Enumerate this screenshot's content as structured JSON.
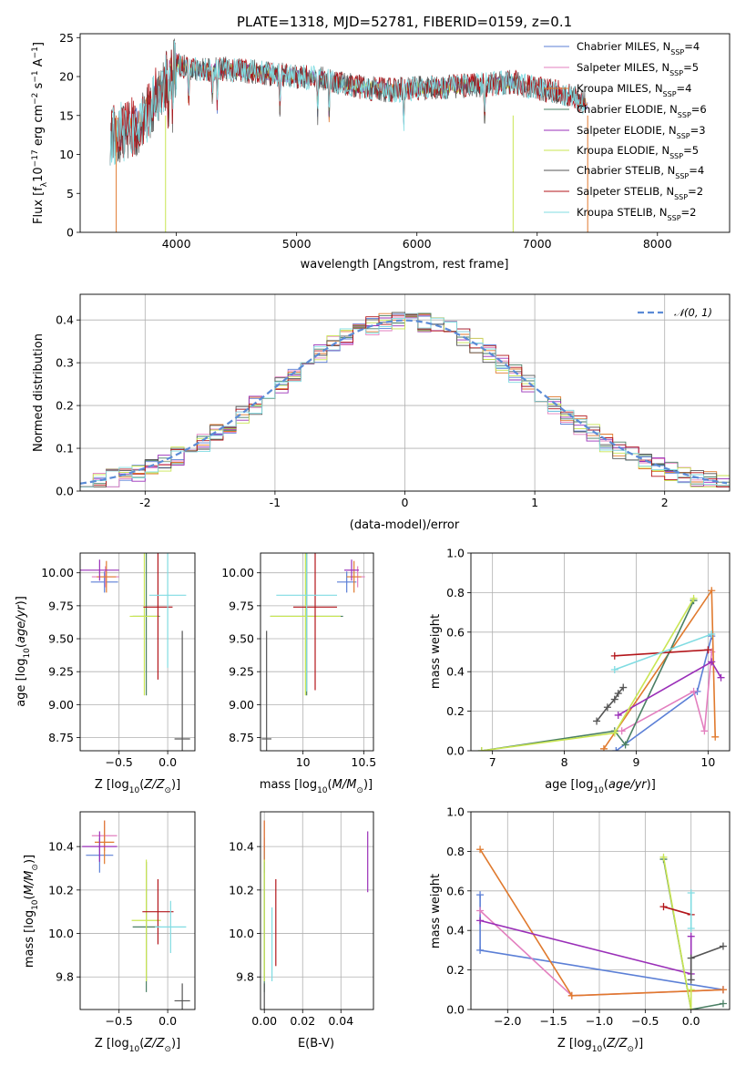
{
  "figure": {
    "title": "PLATE=1318, MJD=52781, FIBERID=0159, z=0.1"
  },
  "colors": {
    "Chabrier MILES": "#5b7fd6",
    "Salpeter MILES": "#e37fbf",
    "Kroupa MILES": "#e07a2e",
    "Chabrier ELODIE": "#4a7f64",
    "Salpeter ELODIE": "#9a2fb8",
    "Kroupa ELODIE": "#c9e552",
    "Chabrier STELIB": "#555555",
    "Salpeter STELIB": "#b3161b",
    "Kroupa STELIB": "#80dce2",
    "gaussian": "#5b8bd6",
    "grid": "#b0b0b0"
  },
  "chart_data": [
    {
      "id": "spectrum",
      "type": "line",
      "title": "PLATE=1318, MJD=52781, FIBERID=0159, z=0.1",
      "xlabel": "wavelength [Angstrom, rest frame]",
      "ylabel": "Flux [f_λ 10^-17 erg cm^-2 s^-1 A^-1]",
      "xlim": [
        3200,
        8600
      ],
      "ylim": [
        0,
        25.5
      ],
      "xticks": [
        4000,
        5000,
        6000,
        7000,
        8000
      ],
      "yticks": [
        0,
        5,
        10,
        15,
        20,
        25
      ],
      "grid": false,
      "legend_position": "right",
      "legend": [
        "Chabrier MILES, N_SSP=4",
        "Salpeter MILES, N_SSP=5",
        "Kroupa MILES, N_SSP=4",
        "Chabrier ELODIE, N_SSP=6",
        "Salpeter ELODIE, N_SSP=3",
        "Kroupa ELODIE, N_SSP=5",
        "Chabrier STELIB, N_SSP=4",
        "Salpeter STELIB, N_SSP=2",
        "Kroupa STELIB, N_SSP=2"
      ],
      "continuum": {
        "x": [
          3500,
          3700,
          3900,
          4000,
          4200,
          4400,
          4600,
          4800,
          5000,
          5200,
          5400,
          5600,
          5800,
          6000,
          6200,
          6400,
          6600,
          6800,
          7000,
          7200,
          7400,
          7500
        ],
        "y": [
          12.5,
          14.0,
          19.0,
          21.5,
          20.8,
          21.0,
          20.7,
          20.3,
          20.0,
          19.8,
          19.0,
          18.5,
          18.2,
          18.5,
          18.6,
          18.8,
          19.0,
          19.3,
          18.4,
          18.0,
          16.6,
          16.0
        ]
      },
      "series": [
        {
          "name": "Chabrier MILES",
          "x_range": [
            3500,
            7420
          ]
        },
        {
          "name": "Salpeter MILES",
          "x_range": [
            3500,
            7420
          ]
        },
        {
          "name": "Kroupa MILES",
          "x_range": [
            3500,
            7420
          ]
        },
        {
          "name": "Chabrier ELODIE",
          "x_range": [
            3900,
            6800
          ]
        },
        {
          "name": "Salpeter ELODIE",
          "x_range": [
            3900,
            6800
          ]
        },
        {
          "name": "Kroupa ELODIE",
          "x_range": [
            3900,
            6800
          ]
        },
        {
          "name": "Chabrier STELIB",
          "x_range": [
            3450,
            7400
          ]
        },
        {
          "name": "Salpeter STELIB",
          "x_range": [
            3450,
            7400
          ]
        },
        {
          "name": "Kroupa STELIB",
          "x_range": [
            3450,
            7400
          ]
        }
      ]
    },
    {
      "id": "residuals",
      "type": "line",
      "xlabel": "(data-model)/error",
      "ylabel": "Normed distribution",
      "xlim": [
        -2.5,
        2.5
      ],
      "ylim": [
        0,
        0.46
      ],
      "xticks": [
        -2,
        -1,
        0,
        1,
        2
      ],
      "yticks": [
        0.0,
        0.1,
        0.2,
        0.3,
        0.4
      ],
      "grid": true,
      "legend": [
        "𝒩(0, 1)"
      ],
      "legend_position": "top-right",
      "bin_width": 0.1
    },
    {
      "id": "age_vs_Z",
      "type": "scatter",
      "xlabel": "Z [log10(Z/Z⊙)]",
      "ylabel": "age  [log10(age/yr)]",
      "xlim": [
        -0.9,
        0.28
      ],
      "ylim": [
        8.65,
        10.15
      ],
      "xticks": [
        -0.5,
        0.0
      ],
      "xtick_labels": [
        "−0.5",
        "0.0"
      ],
      "yticks": [
        8.75,
        9.0,
        9.25,
        9.5,
        9.75,
        10.0
      ],
      "grid": true,
      "points": [
        {
          "series": "Chabrier MILES",
          "x": -0.65,
          "y": 9.93,
          "xerr": 0.14,
          "yerr": 0.08
        },
        {
          "series": "Salpeter MILES",
          "x": -0.64,
          "y": 9.97,
          "xerr": 0.14,
          "yerr": 0.08
        },
        {
          "series": "Kroupa MILES",
          "x": -0.63,
          "y": 9.97,
          "xerr": 0.1,
          "yerr": 0.12
        },
        {
          "series": "Chabrier ELODIE",
          "x": -0.22,
          "y": 9.67,
          "xerr": 0.14,
          "yerr": 0.6
        },
        {
          "series": "Salpeter ELODIE",
          "x": -0.7,
          "y": 10.02,
          "xerr": 0.2,
          "yerr": 0.08
        },
        {
          "series": "Kroupa ELODIE",
          "x": -0.24,
          "y": 9.67,
          "xerr": 0.15,
          "yerr": 0.6
        },
        {
          "series": "Chabrier STELIB",
          "x": 0.15,
          "y": 8.74,
          "xerr": 0.08,
          "yerr": 0.82
        },
        {
          "series": "Salpeter STELIB",
          "x": -0.1,
          "y": 9.74,
          "xerr": 0.15,
          "yerr": 0.55
        },
        {
          "series": "Kroupa STELIB",
          "x": 0.0,
          "y": 9.83,
          "xerr": 0.19,
          "yerr": 0.55
        }
      ]
    },
    {
      "id": "age_vs_mass",
      "type": "scatter",
      "xlabel": "mass [log10(M/M⊙)]",
      "xlim": [
        9.65,
        10.58
      ],
      "ylim": [
        8.65,
        10.15
      ],
      "xticks": [
        10.0,
        10.5
      ],
      "yticks": [
        8.75,
        9.0,
        9.25,
        9.5,
        9.75,
        10.0
      ],
      "grid": true,
      "points": [
        {
          "series": "Chabrier MILES",
          "x": 10.36,
          "y": 9.93,
          "xerr": 0.08,
          "yerr": 0.08
        },
        {
          "series": "Salpeter MILES",
          "x": 10.45,
          "y": 9.97,
          "xerr": 0.06,
          "yerr": 0.08
        },
        {
          "series": "Kroupa MILES",
          "x": 10.42,
          "y": 9.97,
          "xerr": 0.06,
          "yerr": 0.12
        },
        {
          "series": "Chabrier ELODIE",
          "x": 10.03,
          "y": 9.67,
          "xerr": 0.3,
          "yerr": 0.6
        },
        {
          "series": "Salpeter ELODIE",
          "x": 10.4,
          "y": 10.02,
          "xerr": 0.06,
          "yerr": 0.08
        },
        {
          "series": "Kroupa ELODIE",
          "x": 10.02,
          "y": 9.67,
          "xerr": 0.29,
          "yerr": 0.6
        },
        {
          "series": "Chabrier STELIB",
          "x": 9.7,
          "y": 8.74,
          "xerr": 0.04,
          "yerr": 0.82
        },
        {
          "series": "Salpeter STELIB",
          "x": 10.1,
          "y": 9.74,
          "xerr": 0.18,
          "yerr": 0.63
        },
        {
          "series": "Kroupa STELIB",
          "x": 10.03,
          "y": 9.83,
          "xerr": 0.25,
          "yerr": 0.73
        }
      ]
    },
    {
      "id": "weight_vs_age",
      "type": "line",
      "xlabel": "age  [log10(age/yr)]",
      "ylabel": "mass weight",
      "xlim": [
        6.7,
        10.3
      ],
      "ylim": [
        0,
        1.0
      ],
      "xticks": [
        7,
        8,
        9,
        10
      ],
      "yticks": [
        0.0,
        0.2,
        0.4,
        0.6,
        0.8,
        1.0
      ],
      "grid": true,
      "series": [
        {
          "name": "Chabrier MILES",
          "points": [
            [
              8.72,
              0.0
            ],
            [
              9.85,
              0.3
            ],
            [
              10.05,
              0.58
            ]
          ]
        },
        {
          "name": "Salpeter MILES",
          "points": [
            [
              8.8,
              0.1
            ],
            [
              9.8,
              0.3
            ],
            [
              9.95,
              0.1
            ],
            [
              10.05,
              0.5
            ]
          ]
        },
        {
          "name": "Kroupa MILES",
          "points": [
            [
              8.55,
              0.01
            ],
            [
              10.05,
              0.81
            ],
            [
              10.1,
              0.07
            ]
          ]
        },
        {
          "name": "Chabrier ELODIE",
          "points": [
            [
              6.85,
              0.0
            ],
            [
              8.7,
              0.1
            ],
            [
              8.85,
              0.03
            ],
            [
              9.8,
              0.76
            ]
          ]
        },
        {
          "name": "Salpeter ELODIE",
          "points": [
            [
              8.75,
              0.18
            ],
            [
              10.05,
              0.45
            ],
            [
              10.18,
              0.37
            ]
          ]
        },
        {
          "name": "Kroupa ELODIE",
          "points": [
            [
              6.85,
              0.0
            ],
            [
              8.7,
              0.09
            ],
            [
              9.8,
              0.77
            ]
          ]
        },
        {
          "name": "Chabrier STELIB",
          "points": [
            [
              8.45,
              0.15
            ],
            [
              8.6,
              0.22
            ],
            [
              8.7,
              0.26
            ],
            [
              8.75,
              0.29
            ],
            [
              8.82,
              0.32
            ]
          ]
        },
        {
          "name": "Salpeter STELIB",
          "points": [
            [
              8.7,
              0.48
            ],
            [
              10.0,
              0.51
            ]
          ]
        },
        {
          "name": "Kroupa STELIB",
          "points": [
            [
              8.7,
              0.41
            ],
            [
              10.05,
              0.59
            ]
          ]
        }
      ]
    },
    {
      "id": "mass_vs_Z",
      "type": "scatter",
      "xlabel": "Z [log10(Z/Z⊙)]",
      "ylabel": "mass [log10(M/M⊙)]",
      "xlim": [
        -0.9,
        0.28
      ],
      "ylim": [
        9.65,
        10.56
      ],
      "xticks": [
        -0.5,
        0.0
      ],
      "xtick_labels": [
        "−0.5",
        "0.0"
      ],
      "yticks": [
        9.8,
        10.0,
        10.2,
        10.4
      ],
      "grid": true,
      "points": [
        {
          "series": "Chabrier MILES",
          "x": -0.7,
          "y": 10.36,
          "xerr": 0.14,
          "yerr": 0.08
        },
        {
          "series": "Salpeter MILES",
          "x": -0.65,
          "y": 10.45,
          "xerr": 0.13,
          "yerr": 0.07
        },
        {
          "series": "Kroupa MILES",
          "x": -0.65,
          "y": 10.42,
          "xerr": 0.1,
          "yerr": 0.1
        },
        {
          "series": "Chabrier ELODIE",
          "x": -0.22,
          "y": 10.03,
          "xerr": 0.14,
          "yerr": 0.3
        },
        {
          "series": "Salpeter ELODIE",
          "x": -0.7,
          "y": 10.4,
          "xerr": 0.18,
          "yerr": 0.07
        },
        {
          "series": "Kroupa ELODIE",
          "x": -0.22,
          "y": 10.06,
          "xerr": 0.15,
          "yerr": 0.28
        },
        {
          "series": "Chabrier STELIB",
          "x": 0.15,
          "y": 9.69,
          "xerr": 0.08,
          "yerr": 0.08
        },
        {
          "series": "Salpeter STELIB",
          "x": -0.1,
          "y": 10.1,
          "xerr": 0.16,
          "yerr": 0.15
        },
        {
          "series": "Kroupa STELIB",
          "x": 0.03,
          "y": 10.03,
          "xerr": 0.16,
          "yerr": 0.12
        }
      ]
    },
    {
      "id": "mass_vs_ebv",
      "type": "scatter",
      "xlabel": "E(B-V)",
      "xlim": [
        -0.002,
        0.057
      ],
      "ylim": [
        9.65,
        10.56
      ],
      "xticks": [
        0.0,
        0.02,
        0.04
      ],
      "xtick_labels": [
        "0.00",
        "0.02",
        "0.04"
      ],
      "yticks": [
        9.8,
        10.0,
        10.2,
        10.4
      ],
      "grid": true,
      "points": [
        {
          "series": "Chabrier MILES",
          "x": 0.0,
          "y": 10.36,
          "yerr": 0.08
        },
        {
          "series": "Salpeter MILES",
          "x": 0.0,
          "y": 10.45,
          "yerr": 0.07
        },
        {
          "series": "Kroupa MILES",
          "x": 0.0,
          "y": 10.42,
          "yerr": 0.1
        },
        {
          "series": "Chabrier ELODIE",
          "x": 0.0,
          "y": 10.03,
          "yerr": 0.3
        },
        {
          "series": "Salpeter ELODIE",
          "x": 0.054,
          "y": 10.33,
          "yerr": 0.14
        },
        {
          "series": "Kroupa ELODIE",
          "x": 0.0,
          "y": 10.06,
          "yerr": 0.28
        },
        {
          "series": "Chabrier STELIB",
          "x": 0.0,
          "y": 9.69,
          "yerr": 0.08
        },
        {
          "series": "Salpeter STELIB",
          "x": 0.006,
          "y": 10.05,
          "yerr": 0.2
        },
        {
          "series": "Kroupa STELIB",
          "x": 0.004,
          "y": 9.95,
          "yerr": 0.17
        }
      ]
    },
    {
      "id": "weight_vs_Z",
      "type": "line",
      "xlabel": "Z [log10(Z/Z⊙)]",
      "ylabel": "mass weight",
      "xlim": [
        -2.4,
        0.42
      ],
      "ylim": [
        0,
        1.0
      ],
      "xticks": [
        -2.0,
        -1.5,
        -1.0,
        -0.5,
        0.0
      ],
      "xtick_labels": [
        "−2.0",
        "−1.5",
        "−1.0",
        "−0.5",
        "0.0"
      ],
      "yticks": [
        0.0,
        0.2,
        0.4,
        0.6,
        0.8,
        1.0
      ],
      "grid": true,
      "series": [
        {
          "name": "Chabrier MILES",
          "points": [
            [
              -2.3,
              0.58
            ],
            [
              -2.3,
              0.3
            ],
            [
              0.35,
              0.1
            ]
          ]
        },
        {
          "name": "Salpeter MILES",
          "points": [
            [
              -2.3,
              0.5
            ],
            [
              -1.3,
              0.07
            ],
            [
              0.35,
              0.1
            ]
          ]
        },
        {
          "name": "Kroupa MILES",
          "points": [
            [
              -2.3,
              0.81
            ],
            [
              -1.3,
              0.07
            ],
            [
              0.35,
              0.1
            ]
          ]
        },
        {
          "name": "Chabrier ELODIE",
          "points": [
            [
              -0.3,
              0.76
            ],
            [
              0.0,
              0.0
            ],
            [
              0.35,
              0.03
            ]
          ]
        },
        {
          "name": "Salpeter ELODIE",
          "points": [
            [
              -2.3,
              0.45
            ],
            [
              0.0,
              0.18
            ],
            [
              0.0,
              0.37
            ]
          ]
        },
        {
          "name": "Kroupa ELODIE",
          "points": [
            [
              -0.3,
              0.77
            ],
            [
              0.0,
              0.0
            ],
            [
              0.0,
              0.1
            ]
          ]
        },
        {
          "name": "Chabrier STELIB",
          "points": [
            [
              0.0,
              0.15
            ],
            [
              0.0,
              0.26
            ],
            [
              0.35,
              0.32
            ]
          ]
        },
        {
          "name": "Salpeter STELIB",
          "points": [
            [
              -0.3,
              0.52
            ],
            [
              0.0,
              0.48
            ]
          ]
        },
        {
          "name": "Kroupa STELIB",
          "points": [
            [
              0.0,
              0.41
            ],
            [
              0.0,
              0.59
            ]
          ]
        }
      ]
    }
  ]
}
